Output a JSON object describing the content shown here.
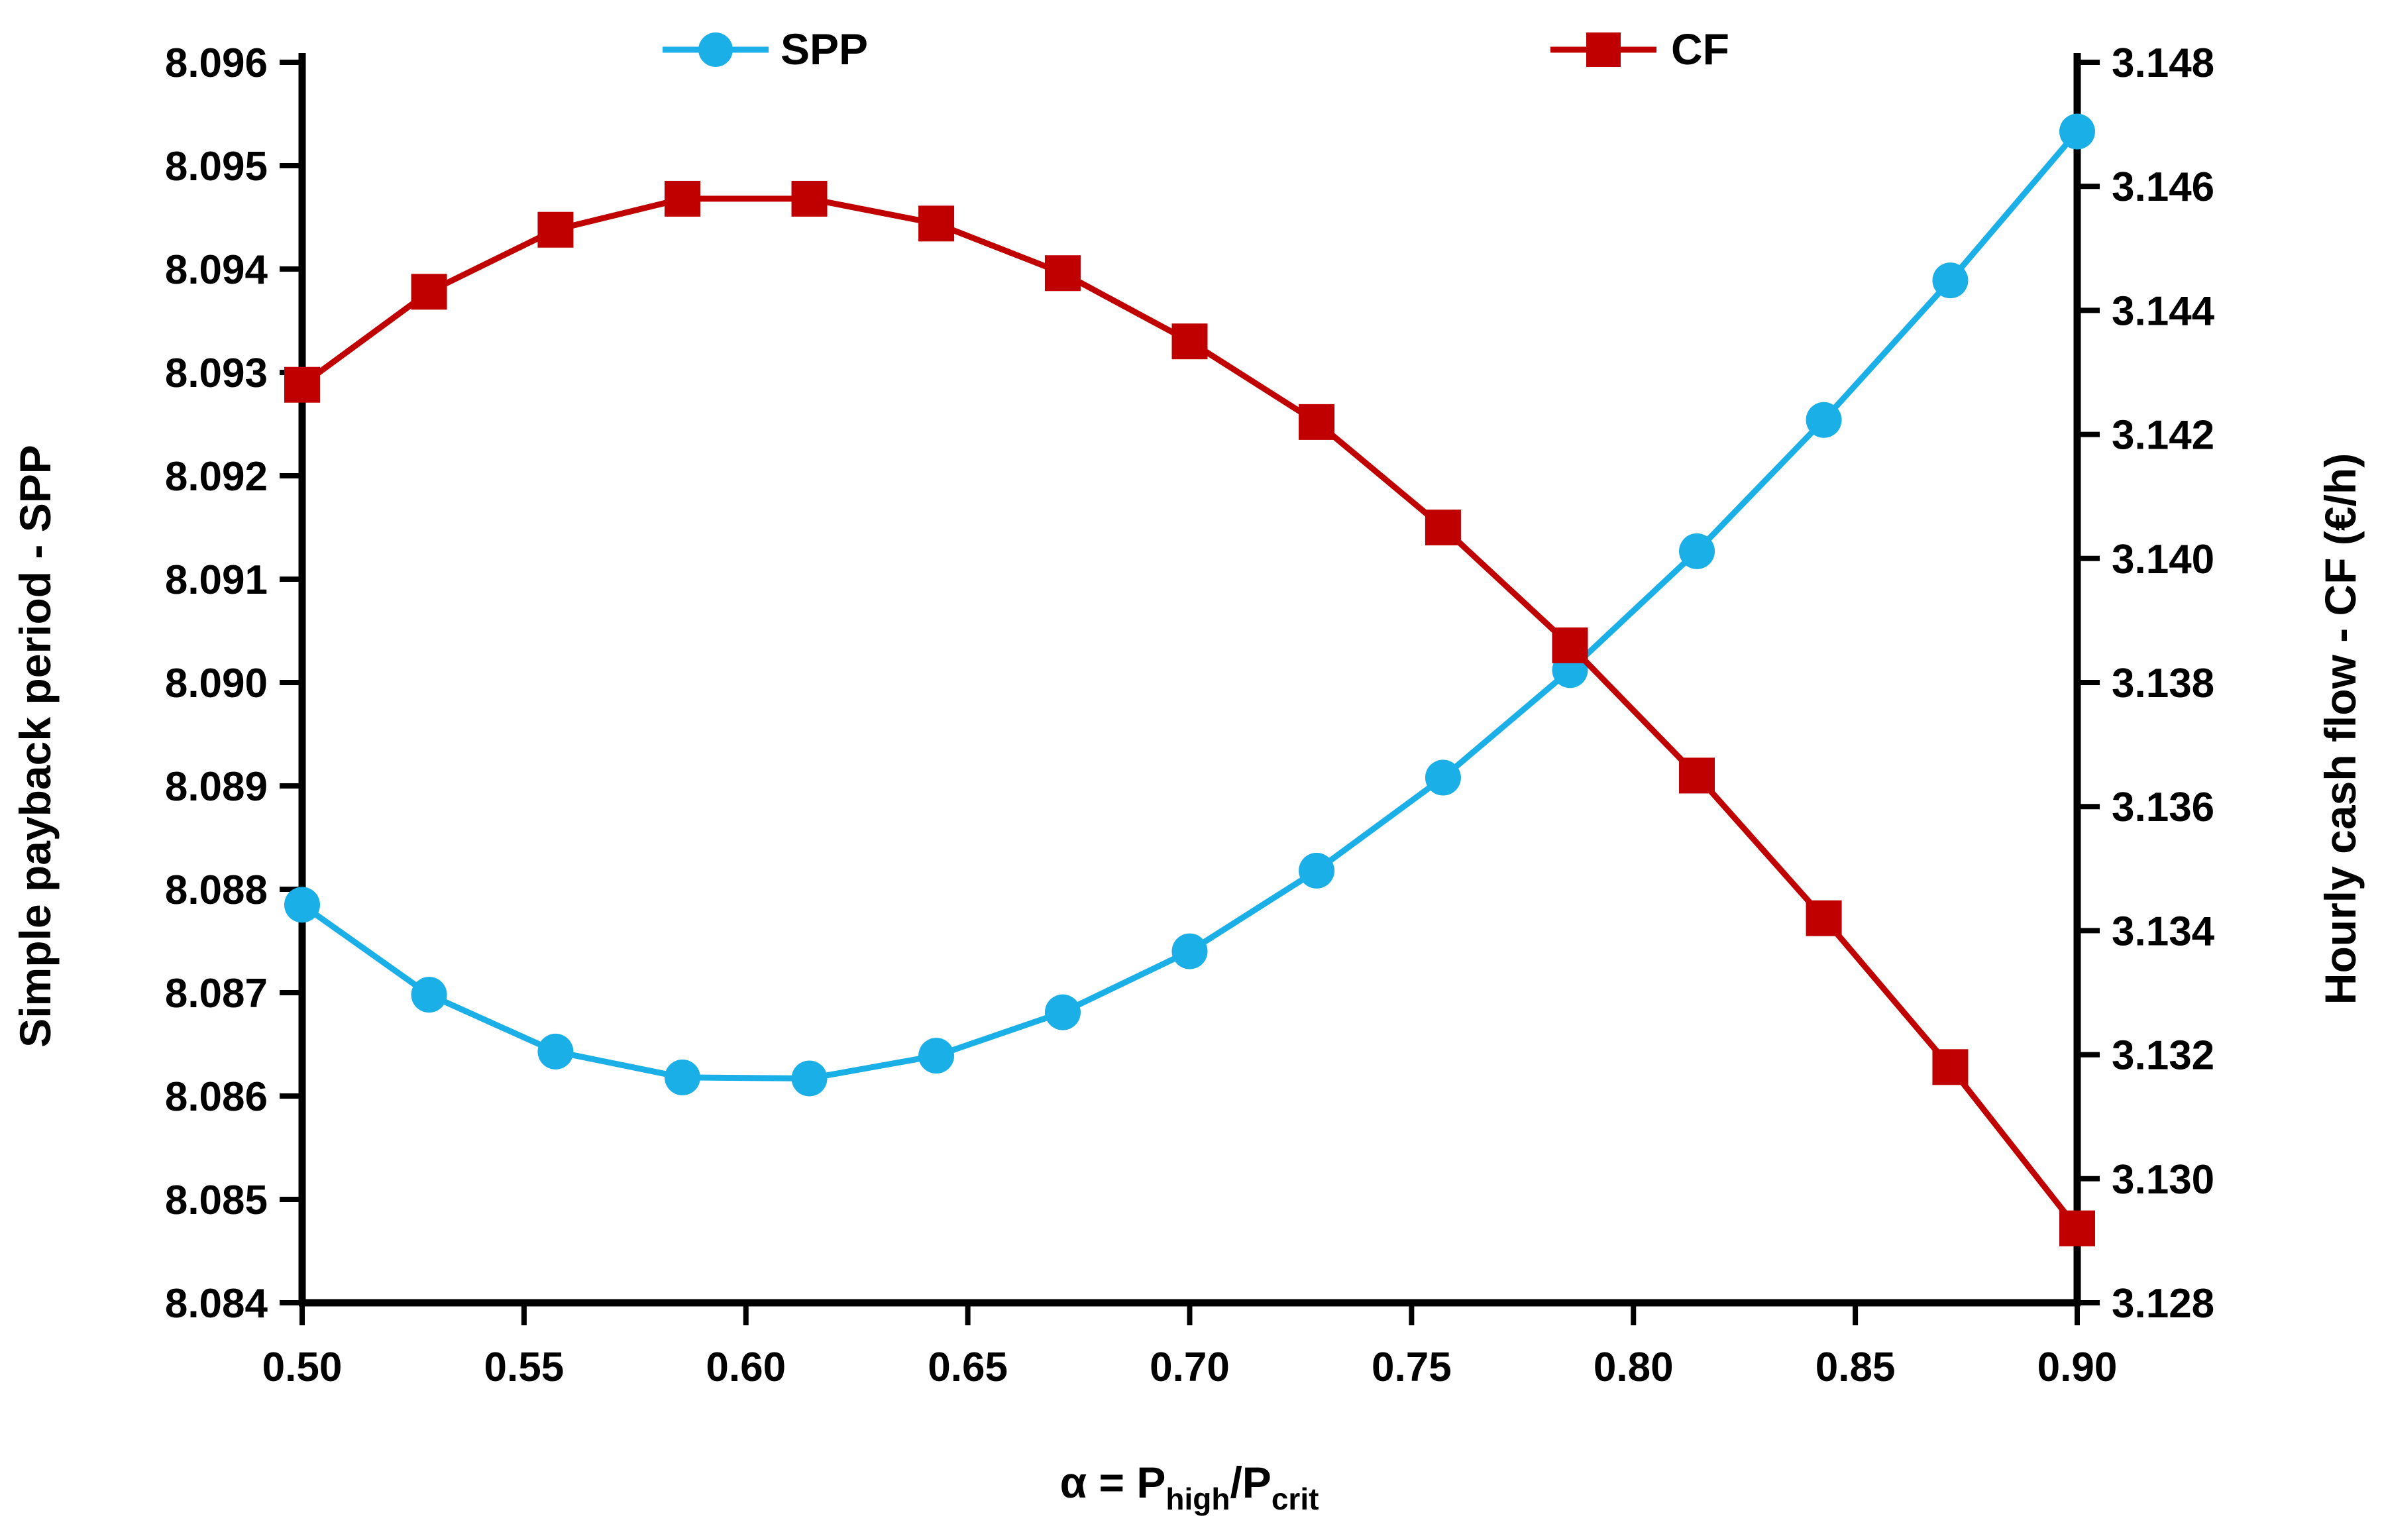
{
  "chart_data": {
    "type": "line",
    "x": [
      0.5,
      0.5286,
      0.5571,
      0.5857,
      0.6143,
      0.6429,
      0.6714,
      0.7,
      0.7286,
      0.7571,
      0.7857,
      0.8143,
      0.8429,
      0.8714,
      0.9
    ],
    "series": [
      {
        "name": "SPP",
        "axis": "left",
        "color": "#1AAFE6",
        "marker": "circle",
        "values": [
          8.08785,
          8.08698,
          8.08643,
          8.08618,
          8.08617,
          8.08639,
          8.08681,
          8.0874,
          8.08818,
          8.08908,
          8.09012,
          8.09127,
          8.09254,
          8.09389,
          8.09533
        ]
      },
      {
        "name": "CF",
        "axis": "right",
        "color": "#C00000",
        "marker": "square",
        "values": [
          3.1428,
          3.1443,
          3.1453,
          3.1458,
          3.1458,
          3.1454,
          3.1446,
          3.1435,
          3.1422,
          3.1405,
          3.1386,
          3.1365,
          3.1342,
          3.1318,
          3.1292
        ]
      }
    ],
    "xlim": [
      0.5,
      0.9
    ],
    "xticks": [
      "0.50",
      "0.55",
      "0.60",
      "0.65",
      "0.70",
      "0.75",
      "0.80",
      "0.85",
      "0.90"
    ],
    "xlabel": {
      "prefix": "α = P",
      "sub1": "high",
      "mid": "/P",
      "sub2": "crit"
    },
    "ylabel_left": "Simple payback period - SPP",
    "ylim_left": [
      8.084,
      8.096
    ],
    "yticks_left": [
      "8.084",
      "8.085",
      "8.086",
      "8.087",
      "8.088",
      "8.089",
      "8.090",
      "8.091",
      "8.092",
      "8.093",
      "8.094",
      "8.095",
      "8.096"
    ],
    "ylabel_right": "Hourly cash flow - CF (€/h)",
    "ylim_right": [
      3.128,
      3.148
    ],
    "yticks_right": [
      "3.128",
      "3.130",
      "3.132",
      "3.134",
      "3.136",
      "3.138",
      "3.140",
      "3.142",
      "3.144",
      "3.146",
      "3.148"
    ],
    "legend": {
      "placement": "top-center",
      "entries": [
        "SPP",
        "CF"
      ]
    },
    "grid": false
  }
}
